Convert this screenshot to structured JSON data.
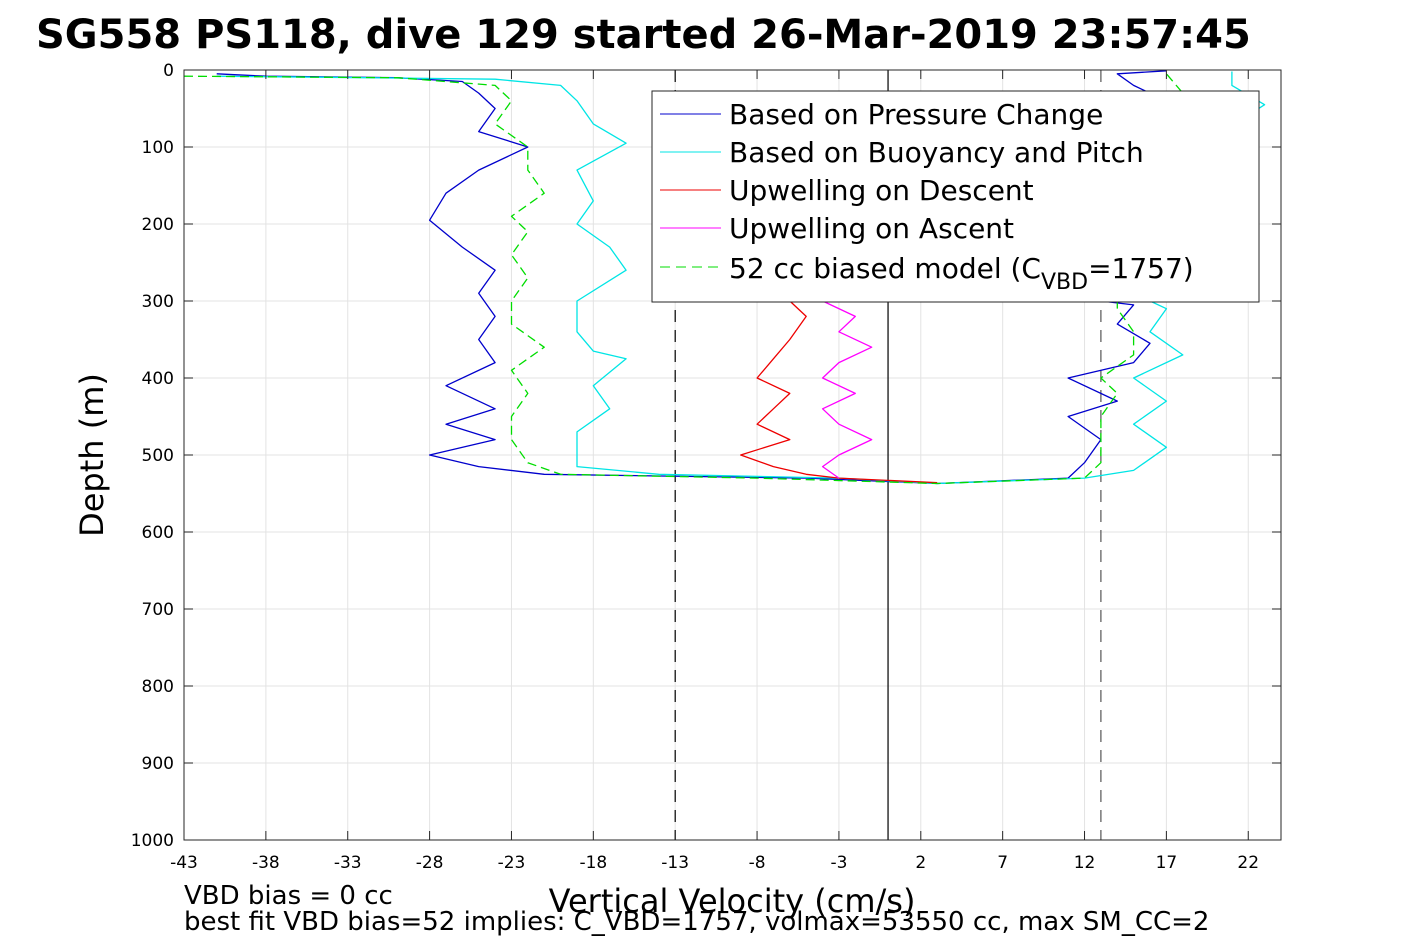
{
  "chart_data": {
    "type": "line",
    "title": "SG558 PS118, dive 129 started 26-Mar-2019 23:57:45",
    "xlabel": "Vertical Velocity (cm/s)",
    "ylabel": "Depth (m)",
    "xlim": [
      -43,
      24
    ],
    "ylim": [
      0,
      1000
    ],
    "y_reversed": true,
    "grid": true,
    "legend_placement": "top-right",
    "xticks": [
      "-43",
      "-38",
      "-33",
      "-28",
      "-23",
      "-18",
      "-13",
      "-8",
      "-3",
      "2",
      "7",
      "12",
      "17",
      "22"
    ],
    "yticks": [
      "0",
      "100",
      "200",
      "300",
      "400",
      "500",
      "600",
      "700",
      "800",
      "900",
      "1000"
    ],
    "reference_lines": [
      {
        "x": -13,
        "style": "dashed",
        "color": "#000000"
      },
      {
        "x": 0,
        "style": "solid",
        "color": "#000000"
      },
      {
        "x": 13,
        "style": "dashed",
        "color": "#555555"
      }
    ],
    "series": [
      {
        "name": "Based on Pressure Change",
        "color": "#0000cc",
        "style": "solid",
        "points": [
          [
            -41,
            5
          ],
          [
            -38,
            8
          ],
          [
            -30,
            10
          ],
          [
            -26,
            15
          ],
          [
            -25,
            30
          ],
          [
            -24,
            50
          ],
          [
            -25,
            80
          ],
          [
            -22,
            100
          ],
          [
            -25,
            130
          ],
          [
            -27,
            160
          ],
          [
            -28,
            195
          ],
          [
            -26,
            230
          ],
          [
            -24,
            260
          ],
          [
            -25,
            290
          ],
          [
            -24,
            320
          ],
          [
            -25,
            350
          ],
          [
            -24,
            380
          ],
          [
            -27,
            410
          ],
          [
            -24,
            440
          ],
          [
            -27,
            460
          ],
          [
            -24,
            480
          ],
          [
            -28,
            500
          ],
          [
            -25,
            515
          ],
          [
            -21,
            525
          ],
          [
            -5,
            530
          ],
          [
            3,
            537
          ],
          [
            11,
            530
          ],
          [
            12,
            510
          ],
          [
            13,
            480
          ],
          [
            11,
            450
          ],
          [
            14,
            430
          ],
          [
            11,
            400
          ],
          [
            15,
            380
          ],
          [
            16,
            355
          ],
          [
            14,
            330
          ],
          [
            15,
            305
          ],
          [
            13,
            300
          ],
          [
            13,
            200
          ],
          [
            14,
            80
          ],
          [
            17,
            40
          ],
          [
            15,
            20
          ],
          [
            14,
            5
          ],
          [
            17,
            1
          ]
        ]
      },
      {
        "name": "Based on Buoyancy and Pitch",
        "color": "#00e5e5",
        "style": "solid",
        "points": [
          [
            -41,
            8
          ],
          [
            -32,
            10
          ],
          [
            -24,
            12
          ],
          [
            -20,
            20
          ],
          [
            -19,
            40
          ],
          [
            -18,
            70
          ],
          [
            -16,
            95
          ],
          [
            -19,
            130
          ],
          [
            -18,
            170
          ],
          [
            -19,
            200
          ],
          [
            -17,
            230
          ],
          [
            -16,
            260
          ],
          [
            -19,
            300
          ],
          [
            -19,
            340
          ],
          [
            -18,
            365
          ],
          [
            -16,
            375
          ],
          [
            -18,
            410
          ],
          [
            -17,
            440
          ],
          [
            -19,
            470
          ],
          [
            -19,
            500
          ],
          [
            -19,
            515
          ],
          [
            -14,
            525
          ],
          [
            -3,
            530
          ],
          [
            3,
            537
          ],
          [
            12,
            530
          ],
          [
            15,
            520
          ],
          [
            17,
            490
          ],
          [
            15,
            460
          ],
          [
            17,
            430
          ],
          [
            15,
            400
          ],
          [
            18,
            370
          ],
          [
            16,
            340
          ],
          [
            17,
            310
          ],
          [
            16,
            300
          ],
          [
            16,
            200
          ],
          [
            19,
            100
          ],
          [
            23,
            45
          ],
          [
            21,
            20
          ],
          [
            21,
            2
          ]
        ]
      },
      {
        "name": "Upwelling on Descent",
        "color": "#ee0000",
        "style": "solid",
        "points": [
          [
            -6,
            300
          ],
          [
            -5,
            320
          ],
          [
            -6,
            350
          ],
          [
            -7,
            375
          ],
          [
            -8,
            400
          ],
          [
            -6,
            420
          ],
          [
            -7,
            440
          ],
          [
            -8,
            460
          ],
          [
            -6,
            480
          ],
          [
            -9,
            500
          ],
          [
            -7,
            515
          ],
          [
            -5,
            525
          ],
          [
            -3,
            530
          ],
          [
            3,
            536
          ]
        ]
      },
      {
        "name": "Upwelling on Ascent",
        "color": "#ff00ff",
        "style": "solid",
        "points": [
          [
            -4,
            300
          ],
          [
            -2,
            320
          ],
          [
            -3,
            340
          ],
          [
            -1,
            360
          ],
          [
            -3,
            380
          ],
          [
            -4,
            400
          ],
          [
            -2,
            420
          ],
          [
            -4,
            440
          ],
          [
            -3,
            460
          ],
          [
            -1,
            480
          ],
          [
            -3,
            500
          ],
          [
            -4,
            515
          ],
          [
            -3,
            530
          ]
        ]
      },
      {
        "name": "52 cc biased model (C_VBD=1757)",
        "color": "#00dd00",
        "style": "dashed",
        "points": [
          [
            -43,
            8
          ],
          [
            -30,
            10
          ],
          [
            -24,
            20
          ],
          [
            -23,
            40
          ],
          [
            -24,
            70
          ],
          [
            -22,
            100
          ],
          [
            -22,
            130
          ],
          [
            -21,
            160
          ],
          [
            -23,
            190
          ],
          [
            -22,
            210
          ],
          [
            -23,
            240
          ],
          [
            -22,
            270
          ],
          [
            -23,
            300
          ],
          [
            -23,
            330
          ],
          [
            -21,
            360
          ],
          [
            -23,
            390
          ],
          [
            -22,
            420
          ],
          [
            -23,
            450
          ],
          [
            -23,
            480
          ],
          [
            -22,
            510
          ],
          [
            -20,
            525
          ],
          [
            -8,
            530
          ],
          [
            3,
            537
          ],
          [
            12,
            530
          ],
          [
            13,
            510
          ],
          [
            13,
            480
          ],
          [
            13,
            450
          ],
          [
            14,
            420
          ],
          [
            13,
            400
          ],
          [
            15,
            370
          ],
          [
            15,
            340
          ],
          [
            14,
            310
          ],
          [
            14,
            300
          ],
          [
            14,
            150
          ],
          [
            17,
            60
          ],
          [
            18,
            30
          ],
          [
            17,
            5
          ]
        ]
      }
    ],
    "legend_labels": {
      "s0": "Based on Pressure Change",
      "s1": "Based on Buoyancy and Pitch",
      "s2": "Upwelling on Descent",
      "s3": "Upwelling on Ascent",
      "s4_main": "52 cc biased model (C",
      "s4_sub": "VBD",
      "s4_tail": "=1757)"
    },
    "annotations": [
      "VBD bias = 0 cc",
      "best fit VBD bias=52 implies: C_VBD=1757, volmax=53550 cc, max SM_CC=2"
    ]
  }
}
